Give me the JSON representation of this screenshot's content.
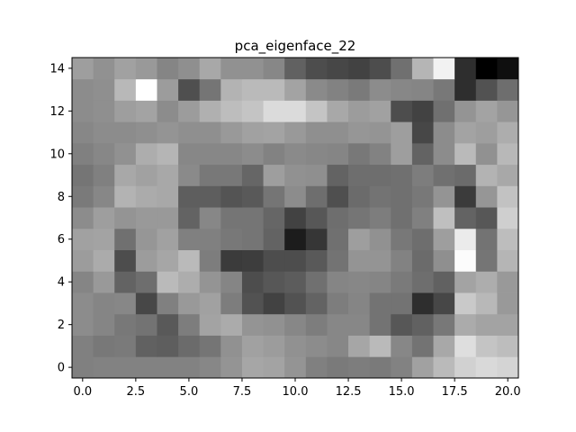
{
  "chart_data": {
    "type": "heatmap",
    "title": "pca_eigenface_22",
    "xlabel": "",
    "ylabel": "",
    "colormap": "gray",
    "xlim": [
      -0.5,
      20.5
    ],
    "ylim": [
      14.5,
      -0.5
    ],
    "x_ticks": [
      0.0,
      2.5,
      5.0,
      7.5,
      10.0,
      12.5,
      15.0,
      17.5,
      20.0
    ],
    "x_tick_labels": [
      "0.0",
      "2.5",
      "5.0",
      "7.5",
      "10.0",
      "12.5",
      "15.0",
      "17.5",
      "20.0"
    ],
    "y_ticks": [
      0,
      2,
      4,
      6,
      8,
      10,
      12,
      14
    ],
    "y_tick_labels": [
      "0",
      "2",
      "4",
      "6",
      "8",
      "10",
      "12",
      "14"
    ],
    "grid": false,
    "rows": 15,
    "cols": 21,
    "values": [
      [
        0.5,
        0.51,
        0.51,
        0.51,
        0.51,
        0.51,
        0.53,
        0.58,
        0.65,
        0.64,
        0.58,
        0.5,
        0.48,
        0.49,
        0.48,
        0.51,
        0.63,
        0.73,
        0.82,
        0.85,
        0.83
      ],
      [
        0.5,
        0.47,
        0.48,
        0.38,
        0.37,
        0.42,
        0.46,
        0.57,
        0.63,
        0.61,
        0.57,
        0.55,
        0.53,
        0.65,
        0.73,
        0.53,
        0.45,
        0.66,
        0.87,
        0.77,
        0.74
      ],
      [
        0.55,
        0.52,
        0.47,
        0.45,
        0.35,
        0.49,
        0.64,
        0.67,
        0.58,
        0.57,
        0.53,
        0.49,
        0.53,
        0.53,
        0.45,
        0.34,
        0.38,
        0.47,
        0.67,
        0.64,
        0.64
      ],
      [
        0.55,
        0.52,
        0.53,
        0.28,
        0.5,
        0.6,
        0.63,
        0.49,
        0.32,
        0.26,
        0.32,
        0.39,
        0.49,
        0.52,
        0.45,
        0.45,
        0.18,
        0.28,
        0.79,
        0.72,
        0.6
      ],
      [
        0.52,
        0.6,
        0.39,
        0.43,
        0.73,
        0.68,
        0.58,
        0.52,
        0.3,
        0.34,
        0.36,
        0.44,
        0.52,
        0.53,
        0.52,
        0.48,
        0.43,
        0.38,
        0.64,
        0.68,
        0.6
      ],
      [
        0.61,
        0.67,
        0.3,
        0.61,
        0.65,
        0.73,
        0.49,
        0.23,
        0.24,
        0.3,
        0.3,
        0.35,
        0.45,
        0.58,
        0.58,
        0.51,
        0.42,
        0.56,
        0.99,
        0.46,
        0.71
      ],
      [
        0.63,
        0.64,
        0.44,
        0.59,
        0.63,
        0.5,
        0.5,
        0.47,
        0.46,
        0.39,
        0.11,
        0.21,
        0.44,
        0.62,
        0.57,
        0.47,
        0.43,
        0.62,
        0.92,
        0.45,
        0.74
      ],
      [
        0.55,
        0.62,
        0.58,
        0.6,
        0.6,
        0.39,
        0.53,
        0.46,
        0.46,
        0.4,
        0.26,
        0.34,
        0.43,
        0.46,
        0.49,
        0.44,
        0.5,
        0.75,
        0.39,
        0.34,
        0.81
      ],
      [
        0.48,
        0.53,
        0.7,
        0.67,
        0.66,
        0.37,
        0.37,
        0.33,
        0.35,
        0.46,
        0.55,
        0.43,
        0.31,
        0.42,
        0.45,
        0.44,
        0.47,
        0.58,
        0.23,
        0.59,
        0.76
      ],
      [
        0.46,
        0.5,
        0.66,
        0.63,
        0.66,
        0.54,
        0.47,
        0.47,
        0.4,
        0.62,
        0.57,
        0.56,
        0.39,
        0.43,
        0.43,
        0.44,
        0.49,
        0.44,
        0.42,
        0.7,
        0.66
      ],
      [
        0.5,
        0.53,
        0.57,
        0.68,
        0.71,
        0.53,
        0.53,
        0.53,
        0.55,
        0.51,
        0.54,
        0.53,
        0.52,
        0.47,
        0.51,
        0.62,
        0.39,
        0.55,
        0.73,
        0.57,
        0.72
      ],
      [
        0.53,
        0.55,
        0.55,
        0.56,
        0.58,
        0.56,
        0.56,
        0.6,
        0.63,
        0.64,
        0.6,
        0.56,
        0.56,
        0.59,
        0.58,
        0.62,
        0.28,
        0.55,
        0.64,
        0.62,
        0.68
      ],
      [
        0.55,
        0.56,
        0.62,
        0.64,
        0.55,
        0.61,
        0.69,
        0.74,
        0.77,
        0.86,
        0.86,
        0.77,
        0.66,
        0.61,
        0.63,
        0.3,
        0.26,
        0.44,
        0.58,
        0.64,
        0.59
      ],
      [
        0.55,
        0.56,
        0.72,
        1.0,
        0.61,
        0.31,
        0.46,
        0.7,
        0.73,
        0.73,
        0.64,
        0.54,
        0.51,
        0.48,
        0.55,
        0.53,
        0.52,
        0.47,
        0.18,
        0.32,
        0.43
      ],
      [
        0.62,
        0.57,
        0.63,
        0.6,
        0.52,
        0.56,
        0.66,
        0.57,
        0.57,
        0.53,
        0.38,
        0.3,
        0.28,
        0.26,
        0.3,
        0.44,
        0.71,
        0.95,
        0.18,
        0.0,
        0.06
      ]
    ]
  }
}
